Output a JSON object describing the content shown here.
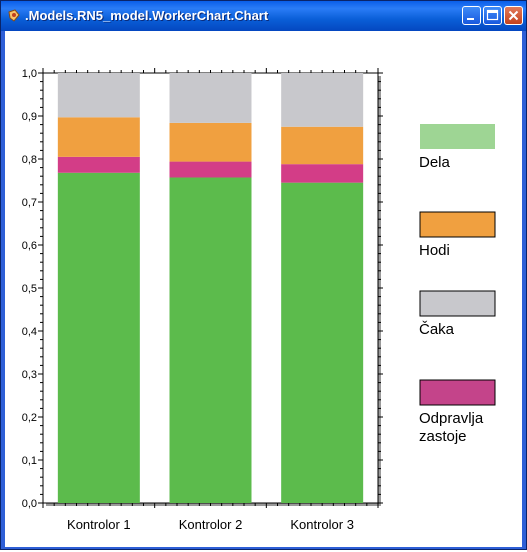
{
  "window": {
    "title": ".Models.RN5_model.WorkerChart.Chart"
  },
  "titlebar_buttons": {
    "minimize_icon": "minimize-icon",
    "maximize_icon": "maximize-icon",
    "close_icon": "close-icon"
  },
  "chart_data": {
    "type": "bar",
    "stacked": true,
    "categories": [
      "Kontrolor 1",
      "Kontrolor 2",
      "Kontrolor 3"
    ],
    "series": [
      {
        "name": "Dela",
        "color": "#5cbb4c",
        "values": [
          0.768,
          0.757,
          0.745
        ]
      },
      {
        "name": "Odpravlja zastoje",
        "color": "#d33d87",
        "values": [
          0.037,
          0.037,
          0.043
        ]
      },
      {
        "name": "Hodi",
        "color": "#f0a040",
        "values": [
          0.092,
          0.09,
          0.087
        ]
      },
      {
        "name": "Čaka",
        "color": "#c8c8cc",
        "values": [
          0.103,
          0.116,
          0.125
        ]
      }
    ],
    "yticks": [
      "0,0",
      "0,1",
      "0,2",
      "0,3",
      "0,4",
      "0,5",
      "0,6",
      "0,7",
      "0,8",
      "0,9",
      "1,0"
    ],
    "ylim": [
      0,
      1
    ],
    "grid": false,
    "legend": {
      "placement": "right",
      "items": [
        {
          "label_lines": [
            "Dela"
          ],
          "color": "#9ed594"
        },
        {
          "label_lines": [
            "Hodi"
          ],
          "color": "#f0a040"
        },
        {
          "label_lines": [
            "Čaka"
          ],
          "color": "#c8c8cc"
        },
        {
          "label_lines": [
            "Odpravlja",
            "zastoje"
          ],
          "color": "#c4448a"
        }
      ]
    }
  }
}
